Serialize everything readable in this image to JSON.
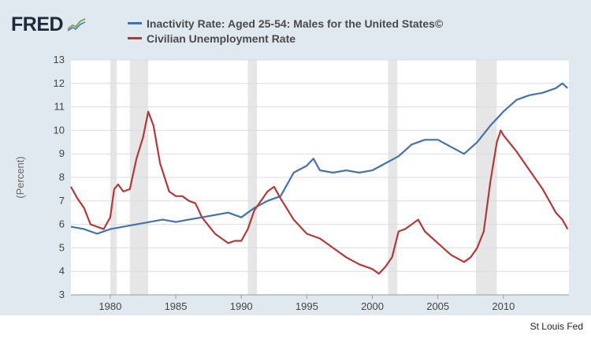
{
  "brand": {
    "name": "FRED",
    "icon": "line-chart-icon"
  },
  "source": "St Louis Fed",
  "colors": {
    "frame": "#e1e9f0",
    "plot_bg": "#ffffff",
    "grid": "#d8dde3",
    "recession": "#e6e6e6"
  },
  "chart_data": {
    "type": "line",
    "ylabel": "(Percent)",
    "xlim": [
      1977,
      2015
    ],
    "ylim": [
      3,
      13
    ],
    "xticks": [
      1980,
      1985,
      1990,
      1995,
      2000,
      2005,
      2010
    ],
    "yticks": [
      3,
      4,
      5,
      6,
      7,
      8,
      9,
      10,
      11,
      12,
      13
    ],
    "recessions": [
      [
        1980.0,
        1980.5
      ],
      [
        1981.5,
        1982.9
      ],
      [
        1990.5,
        1991.2
      ],
      [
        2001.2,
        2001.9
      ],
      [
        2007.9,
        2009.5
      ]
    ],
    "series": [
      {
        "name": "Inactivity Rate: Aged 25-54: Males for the United States©",
        "color": "#4572a7",
        "x": [
          1977,
          1978,
          1979,
          1980,
          1981,
          1982,
          1983,
          1984,
          1985,
          1986,
          1987,
          1988,
          1989,
          1990,
          1991,
          1992,
          1993,
          1994,
          1995,
          1995.5,
          1996,
          1997,
          1998,
          1999,
          2000,
          2001,
          2002,
          2003,
          2004,
          2005,
          2006,
          2007,
          2008,
          2009,
          2010,
          2011,
          2012,
          2013,
          2014,
          2014.5,
          2014.9
        ],
        "y": [
          5.9,
          5.8,
          5.6,
          5.8,
          5.9,
          6.0,
          6.1,
          6.2,
          6.1,
          6.2,
          6.3,
          6.4,
          6.5,
          6.3,
          6.7,
          7.0,
          7.2,
          8.2,
          8.5,
          8.8,
          8.3,
          8.2,
          8.3,
          8.2,
          8.3,
          8.6,
          8.9,
          9.4,
          9.6,
          9.6,
          9.3,
          9.0,
          9.5,
          10.2,
          10.8,
          11.3,
          11.5,
          11.6,
          11.8,
          12.0,
          11.8
        ]
      },
      {
        "name": "Civilian Unemployment Rate",
        "color": "#b03a3a",
        "x": [
          1977,
          1977.5,
          1978,
          1978.5,
          1979,
          1979.5,
          1980,
          1980.3,
          1980.6,
          1981,
          1981.5,
          1982,
          1982.5,
          1982.9,
          1983.3,
          1983.8,
          1984.5,
          1985,
          1985.5,
          1986,
          1986.5,
          1987,
          1988,
          1988.5,
          1989,
          1989.5,
          1990,
          1990.5,
          1991,
          1991.5,
          1992,
          1992.5,
          1993,
          1994,
          1995,
          1996,
          1997,
          1998,
          1999,
          2000,
          2000.5,
          2001,
          2001.5,
          2002,
          2002.5,
          2003,
          2003.5,
          2004,
          2005,
          2006,
          2007,
          2007.5,
          2008,
          2008.5,
          2009,
          2009.5,
          2009.8,
          2010,
          2011,
          2012,
          2013,
          2014,
          2014.5,
          2014.9
        ],
        "y": [
          7.6,
          7.1,
          6.7,
          6.0,
          5.9,
          5.8,
          6.3,
          7.5,
          7.7,
          7.4,
          7.5,
          8.8,
          9.7,
          10.8,
          10.2,
          8.6,
          7.4,
          7.2,
          7.2,
          7.0,
          6.9,
          6.3,
          5.6,
          5.4,
          5.2,
          5.3,
          5.3,
          5.8,
          6.6,
          7.0,
          7.4,
          7.6,
          7.1,
          6.2,
          5.6,
          5.4,
          5.0,
          4.6,
          4.3,
          4.1,
          3.9,
          4.2,
          4.6,
          5.7,
          5.8,
          6.0,
          6.2,
          5.7,
          5.2,
          4.7,
          4.4,
          4.6,
          5.0,
          5.7,
          7.8,
          9.5,
          10.0,
          9.8,
          9.1,
          8.3,
          7.5,
          6.5,
          6.2,
          5.8
        ]
      }
    ]
  }
}
